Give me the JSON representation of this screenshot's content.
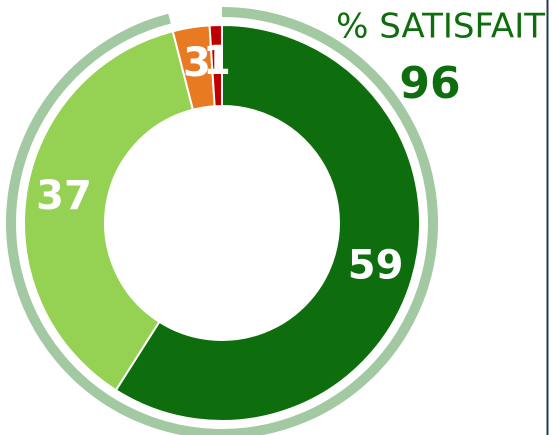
{
  "chart_data": {
    "type": "donut",
    "values": [
      59,
      37,
      3,
      1
    ],
    "colors": [
      "#0e6e0e",
      "#95d152",
      "#e87a22",
      "#c00000"
    ],
    "annotation": {
      "label": "% SATISFAIT",
      "value": 96,
      "color": "#a3c9a3"
    }
  }
}
